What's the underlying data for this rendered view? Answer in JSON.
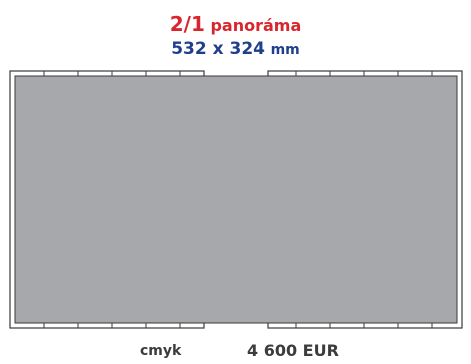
{
  "heading": {
    "format": "2/1",
    "name": "panoráma",
    "dimensions": "532 x 324",
    "unit": "mm"
  },
  "footer": {
    "color_mode": "cmyk",
    "price": "4 600 EUR"
  },
  "colors": {
    "title_red": "#d9262e",
    "title_blue": "#1f3f8c",
    "ad_area": "#a7a8ab",
    "page_outline": "#3a3a3a",
    "footer_text": "#3c3c3c"
  }
}
